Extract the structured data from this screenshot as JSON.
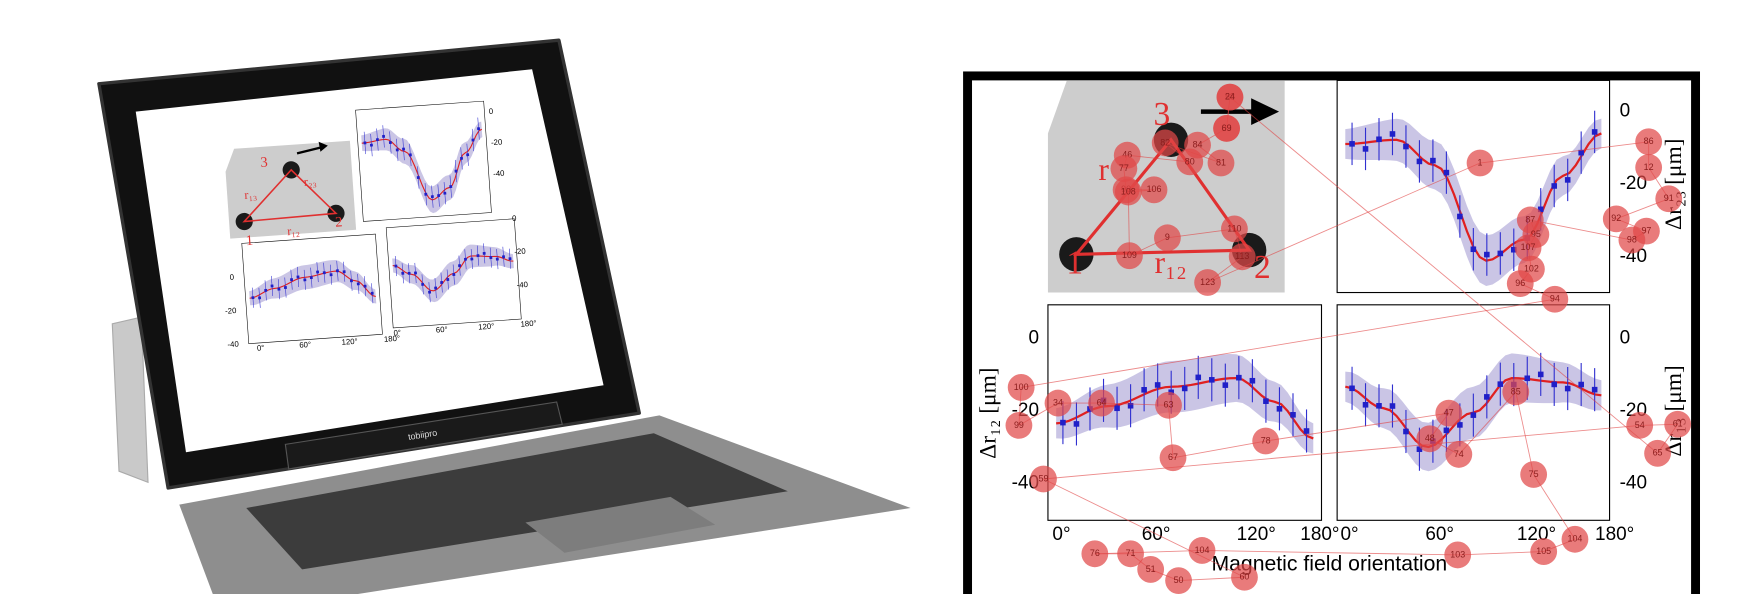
{
  "laptop": {
    "brand": "tobiipro",
    "points": [
      "1",
      "2",
      "3"
    ],
    "distances": [
      "r₁₂",
      "r₁₃",
      "r₂₃"
    ],
    "yticks": [
      "0",
      "-20",
      "-40"
    ],
    "xticks": [
      "0°",
      "60°",
      "120°",
      "180°"
    ]
  },
  "figure": {
    "points": [
      "1",
      "2",
      "3"
    ],
    "distances": [
      "r",
      "r₁₂"
    ],
    "yticks": [
      "0",
      "-20",
      "-40"
    ],
    "xticks": [
      "0°",
      "60°",
      "120°",
      "180°"
    ],
    "ylabels": [
      "Δr₁₂ [μm]",
      "Δr₂₃ [μm]",
      "Δr₁₃ [μm]"
    ],
    "xlabel": "Magnetic field orientation"
  },
  "fixations": [
    "58",
    "83",
    "84",
    "81",
    "82",
    "80",
    "46",
    "77",
    "90",
    "106",
    "108",
    "109",
    "9",
    "110",
    "113",
    "123",
    "1",
    "86",
    "12",
    "91",
    "92",
    "97",
    "98",
    "87",
    "95",
    "107",
    "102",
    "96",
    "94",
    "100",
    "99",
    "34",
    "64",
    "63",
    "67",
    "78",
    "47",
    "48",
    "74",
    "85",
    "75",
    "104",
    "105",
    "103",
    "104",
    "76",
    "71",
    "51",
    "50",
    "60",
    "59",
    "54",
    "61",
    "65",
    "24",
    "69"
  ]
}
